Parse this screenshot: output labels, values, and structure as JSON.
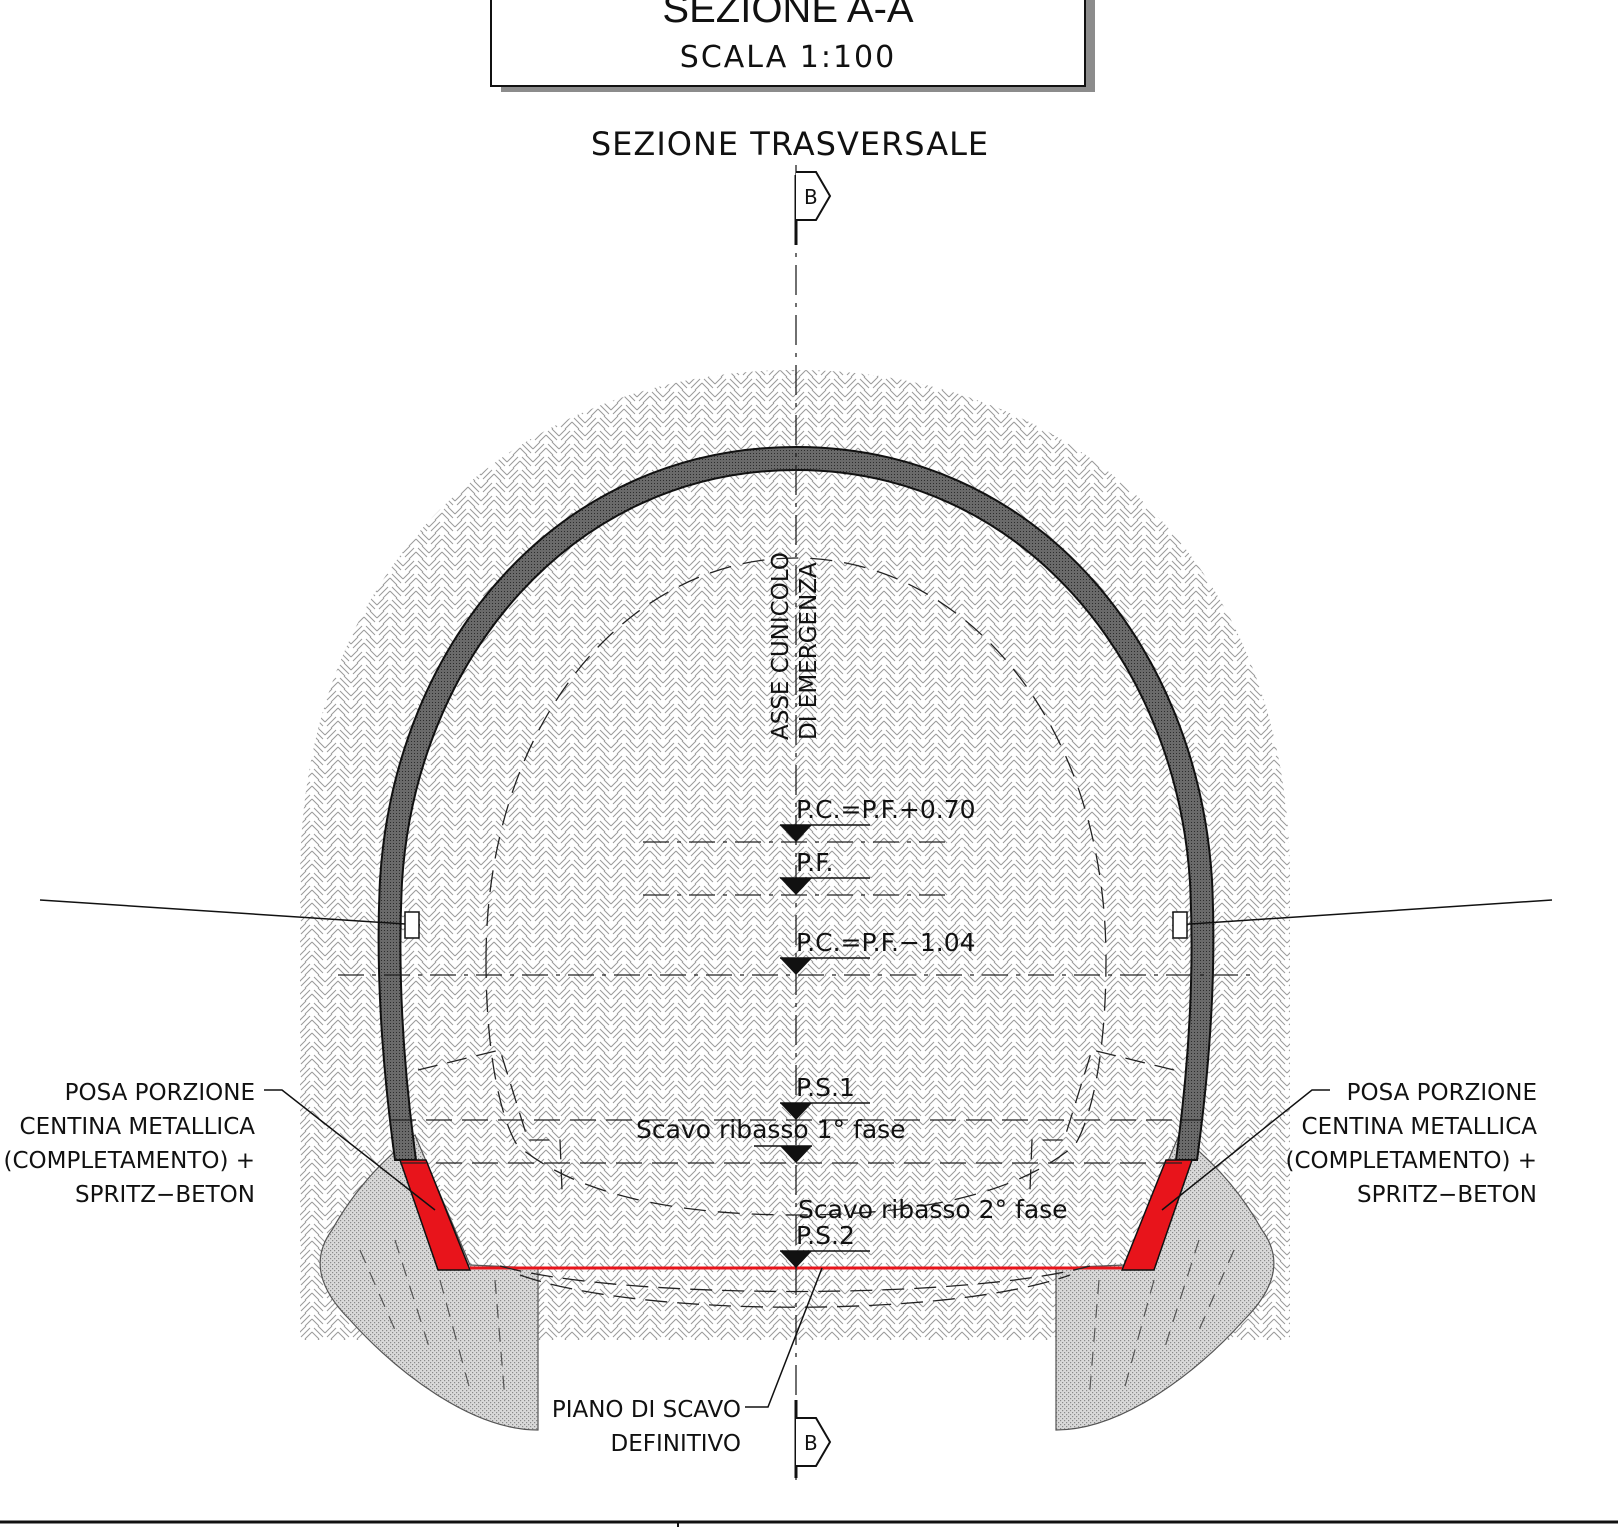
{
  "title": {
    "main": "SEZIONE A-A",
    "scale": "SCALA 1:100"
  },
  "section_label": "SEZIONE TRASVERSALE",
  "section_mark": "B",
  "axis_label": {
    "line1": "ASSE CUNICOLO",
    "line2": "DI EMERGENZA"
  },
  "levels": [
    {
      "id": "pc_plus",
      "label": "P.C.=P.F.+0.70"
    },
    {
      "id": "pf",
      "label": "P.F."
    },
    {
      "id": "pc_minus",
      "label": "P.C.=P.F.−1.04"
    },
    {
      "id": "ps1",
      "label": "P.S.1"
    },
    {
      "id": "scavo1",
      "label": "Scavo ribasso 1° fase"
    },
    {
      "id": "scavo2",
      "label": "Scavo ribasso 2° fase"
    },
    {
      "id": "ps2",
      "label": "P.S.2"
    }
  ],
  "notes": {
    "left": [
      "POSA PORZIONE",
      "CENTINA METALLICA",
      "(COMPLETAMENTO) +",
      "SPRITZ−BETON"
    ],
    "right": [
      "POSA PORZIONE",
      "CENTINA METALLICA",
      "(COMPLETAMENTO) +",
      "SPRITZ−BETON"
    ],
    "bottom": [
      "PIANO DI SCAVO",
      "DEFINITIVO"
    ]
  },
  "colors": {
    "highlight": "#e8141b",
    "lining": "#6e6e6e",
    "line": "#111111"
  }
}
